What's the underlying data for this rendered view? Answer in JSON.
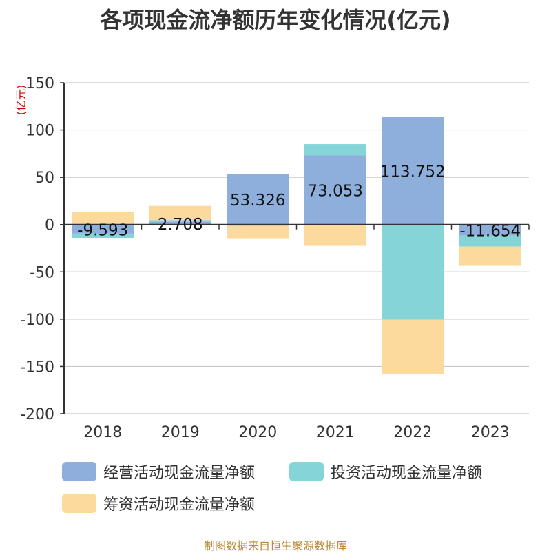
{
  "title": "各项现金流净额历年变化情况(亿元)",
  "source_note": "制图数据来自恒生聚源数据库",
  "chart_data": {
    "type": "bar",
    "stacked": true,
    "title": "各项现金流净额历年变化情况(亿元)",
    "ylabel": "(亿元)",
    "xlabel": "",
    "ylim": [
      -200,
      150
    ],
    "yticks": [
      150,
      100,
      50,
      0,
      -50,
      -100,
      -150,
      -200
    ],
    "grid": true,
    "legend_position": "bottom",
    "categories": [
      "2018",
      "2019",
      "2020",
      "2021",
      "2022",
      "2023"
    ],
    "series": [
      {
        "name": "经营活动现金流量净额",
        "color": "#8eaedb",
        "values": [
          -9.593,
          2.708,
          53.326,
          73.053,
          113.752,
          -11.654
        ],
        "labels": [
          "-9.593",
          "2.708",
          "53.326",
          "73.053",
          "113.752",
          "-11.654"
        ]
      },
      {
        "name": "投资活动现金流量净额",
        "color": "#85d4d8",
        "values": [
          -4.5,
          2.0,
          -1.5,
          12.0,
          -100.5,
          -11.5
        ]
      },
      {
        "name": "筹资活动现金流量净额",
        "color": "#fcd99d",
        "values": [
          13.5,
          15.0,
          -13.0,
          -22.5,
          -57.5,
          -20.5
        ]
      }
    ]
  }
}
